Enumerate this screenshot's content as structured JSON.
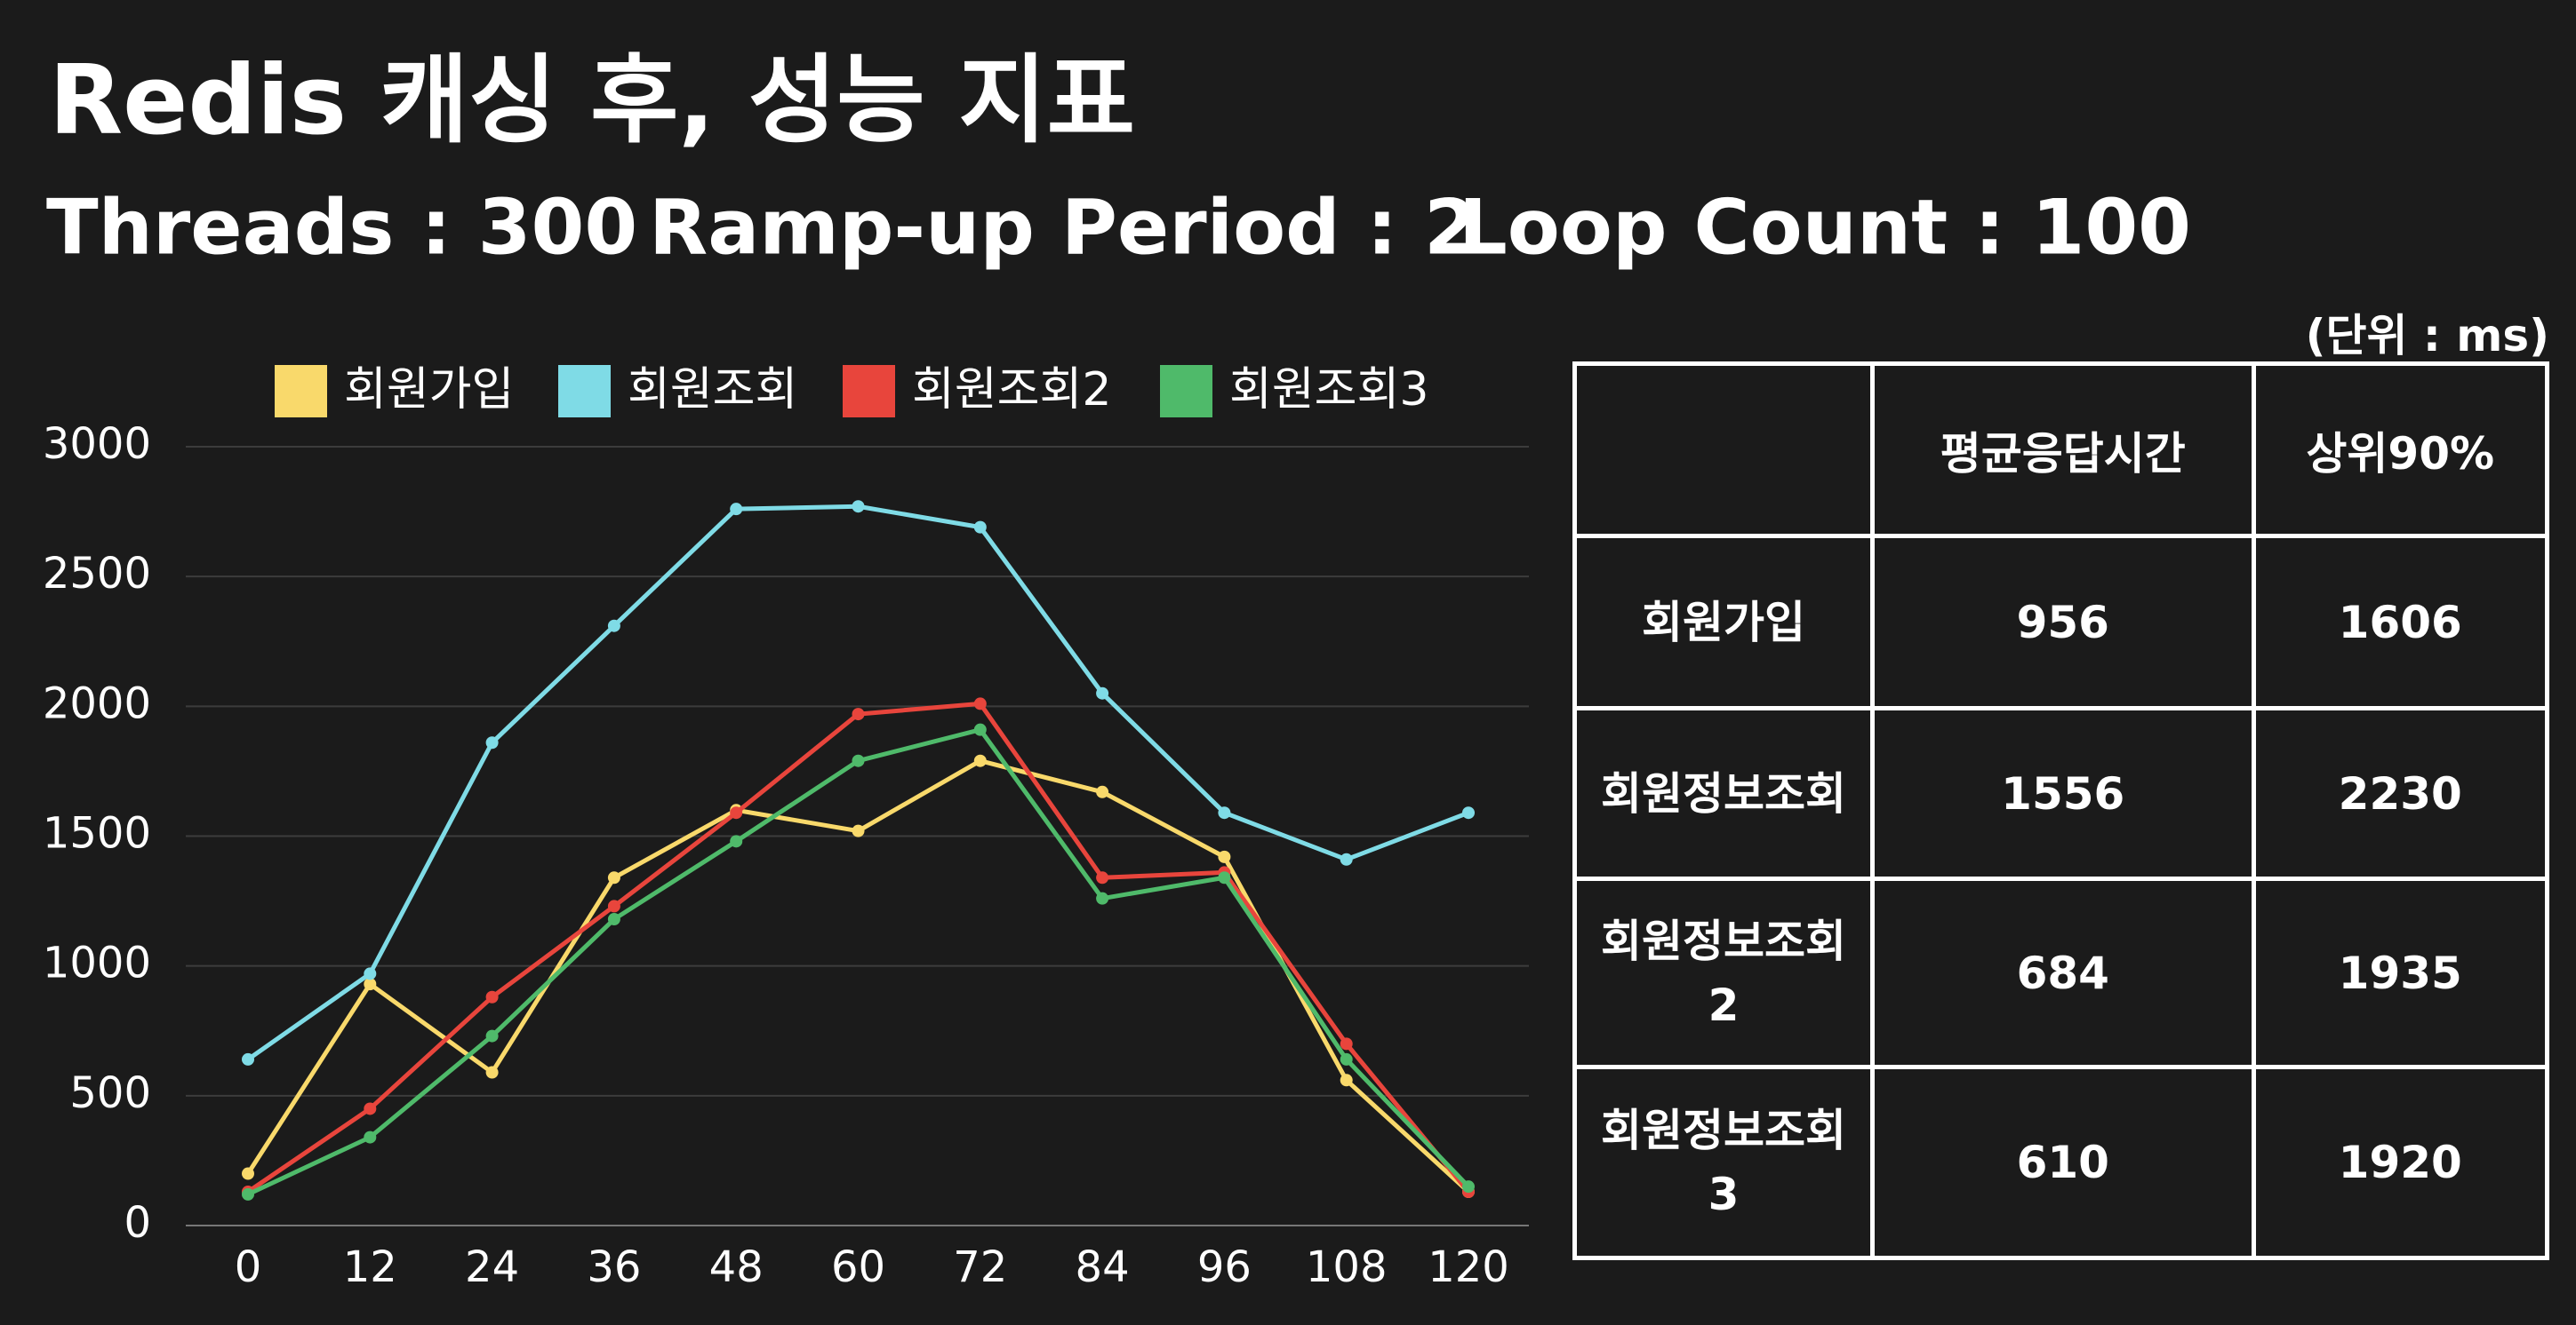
{
  "chart_data": {
    "type": "line",
    "title": "Redis 캐싱 후, 성능 지표",
    "subtitle": [
      "Threads : 300",
      "Ramp-up Period : 2",
      "Loop Count : 100"
    ],
    "x": [
      0,
      12,
      24,
      36,
      48,
      60,
      72,
      84,
      96,
      108,
      120
    ],
    "xlim": [
      0,
      120
    ],
    "xticks": [
      0,
      12,
      24,
      36,
      48,
      60,
      72,
      84,
      96,
      108,
      120
    ],
    "ylim": [
      0,
      3000
    ],
    "yticks": [
      0,
      500,
      1000,
      1500,
      2000,
      2500,
      3000
    ],
    "grid": true,
    "legend": "top",
    "series": [
      {
        "name": "회원가입",
        "color": "#f9d96b",
        "values": [
          200,
          930,
          590,
          1340,
          1600,
          1520,
          1790,
          1670,
          1420,
          560,
          130
        ]
      },
      {
        "name": "회원조회",
        "color": "#7fdbe6",
        "values": [
          640,
          970,
          1860,
          2310,
          2760,
          2770,
          2690,
          2050,
          1590,
          1410,
          1590
        ]
      },
      {
        "name": "회원조회2",
        "color": "#e8453c",
        "values": [
          130,
          450,
          880,
          1230,
          1590,
          1970,
          2010,
          1340,
          1360,
          700,
          130
        ]
      },
      {
        "name": "회원조회3",
        "color": "#4fba6a",
        "values": [
          120,
          340,
          730,
          1180,
          1480,
          1790,
          1910,
          1260,
          1340,
          640,
          150
        ]
      }
    ]
  },
  "table": {
    "unit": "(단위 : ms)",
    "columns": [
      "평균응답시간",
      "상위90%"
    ],
    "rows": [
      {
        "label": "회원가입",
        "values": [
          956,
          1606
        ]
      },
      {
        "label": "회원정보조회",
        "values": [
          1556,
          2230
        ]
      },
      {
        "label": "회원정보조회2",
        "values": [
          684,
          1935
        ]
      },
      {
        "label": "회원정보조회3",
        "values": [
          610,
          1920
        ]
      }
    ]
  }
}
